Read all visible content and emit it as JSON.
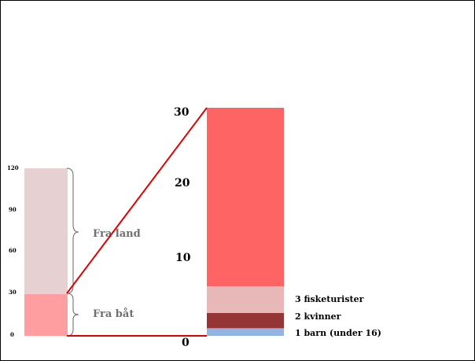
{
  "chart_data": [
    {
      "type": "bar",
      "stacked": true,
      "categories": [
        ""
      ],
      "series": [
        {
          "name": "Fra båt",
          "values": [
            30
          ],
          "color": "#ff9ea0"
        },
        {
          "name": "Fra land",
          "values": [
            90
          ],
          "color": "#e6d0d2"
        }
      ],
      "ylim": [
        0,
        120
      ],
      "yticks": [
        "0",
        "30",
        "60",
        "90",
        "120"
      ],
      "brace_labels": [
        "Fra land",
        "Fra båt"
      ]
    },
    {
      "type": "bar",
      "stacked": true,
      "categories": [
        ""
      ],
      "series": [
        {
          "name": "1 barn (under 16)",
          "values": [
            1
          ],
          "color": "#93b4e0"
        },
        {
          "name": "2 kvinner",
          "values": [
            2
          ],
          "color": "#953535"
        },
        {
          "name": "3 fisketurister",
          "values": [
            3.5
          ],
          "color": "#e8b7b7"
        },
        {
          "name": "",
          "values": [
            23.5
          ],
          "color": "#ff6464"
        }
      ],
      "ylim": [
        0,
        30
      ],
      "yticks": [
        "0",
        "10",
        "20",
        "30"
      ],
      "segment_labels": [
        "3 fisketurister",
        "2 kvinner",
        "1 barn (under 16)"
      ]
    }
  ],
  "zoom_line_color": "#e00000"
}
